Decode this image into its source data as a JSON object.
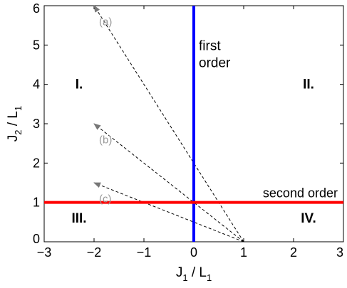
{
  "chart_data": {
    "type": "line",
    "title": "",
    "xlabel": "J_1 / L_1",
    "xlabel_main": "J",
    "xlabel_main_sub": "1",
    "xlabel_sep": " / L",
    "xlabel_den_sub": "1",
    "ylabel": "J_2 / L_1",
    "ylabel_main": "J",
    "ylabel_main_sub": "2",
    "ylabel_sep": " / L",
    "ylabel_den_sub": "1",
    "xlim": [
      -3,
      3
    ],
    "ylim": [
      0,
      6
    ],
    "x_ticks": [
      {
        "value": -3,
        "label": "−3"
      },
      {
        "value": -2,
        "label": "−2"
      },
      {
        "value": -1,
        "label": "−1"
      },
      {
        "value": 0,
        "label": "0"
      },
      {
        "value": 1,
        "label": "1"
      },
      {
        "value": 2,
        "label": "2"
      },
      {
        "value": 3,
        "label": "3"
      }
    ],
    "y_ticks": [
      {
        "value": 0,
        "label": "0"
      },
      {
        "value": 1,
        "label": "1"
      },
      {
        "value": 2,
        "label": "2"
      },
      {
        "value": 3,
        "label": "3"
      },
      {
        "value": 4,
        "label": "4"
      },
      {
        "value": 5,
        "label": "5"
      },
      {
        "value": 6,
        "label": "6"
      }
    ],
    "grid": false,
    "boundaries": [
      {
        "id": "first-order",
        "orientation": "vertical",
        "x": 0,
        "color": "#0000ff",
        "label_lines": [
          "first",
          "order"
        ]
      },
      {
        "id": "second-order",
        "orientation": "horizontal",
        "y": 1,
        "color": "#ff0000",
        "label_lines": [
          "second order"
        ]
      }
    ],
    "regions": [
      {
        "label": "I.",
        "x": -2.3,
        "y": 4
      },
      {
        "label": "II.",
        "x": 2.3,
        "y": 4
      },
      {
        "label": "III.",
        "x": -2.3,
        "y": 0.6
      },
      {
        "label": "IV.",
        "x": 2.3,
        "y": 0.6
      }
    ],
    "paths": [
      {
        "label": "(a)",
        "from": [
          1,
          0
        ],
        "to": [
          -2,
          6
        ]
      },
      {
        "label": "(b)",
        "from": [
          1,
          0
        ],
        "to": [
          -2,
          3
        ]
      },
      {
        "label": "(c)",
        "from": [
          1,
          0
        ],
        "to": [
          -2,
          1.5
        ]
      }
    ],
    "path_color": "#000000",
    "path_label_color": "#999999"
  }
}
